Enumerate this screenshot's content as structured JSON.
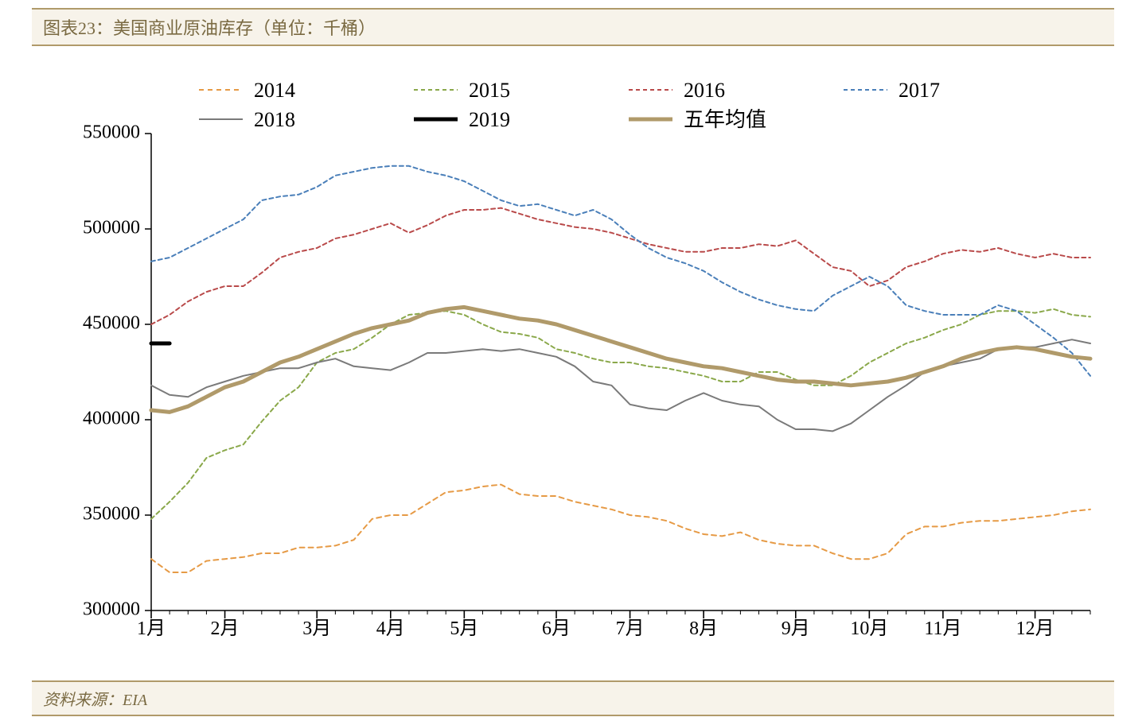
{
  "title": "图表23：美国商业原油库存（单位：千桶）",
  "source": "资料来源：EIA",
  "chart": {
    "type": "line",
    "background_color": "#ffffff",
    "axis_color": "#000000",
    "title_band_bg": "#f7f3ea",
    "title_band_border": "#b09a6a",
    "title_text_color": "#7a6a42",
    "xlabels": [
      "1月",
      "2月",
      "3月",
      "4月",
      "5月",
      "6月",
      "7月",
      "8月",
      "9月",
      "10月",
      "11月",
      "12月"
    ],
    "x_count": 52,
    "ylim": [
      300000,
      550000
    ],
    "ytick_step": 50000,
    "yticks": [
      300000,
      350000,
      400000,
      450000,
      500000,
      550000
    ],
    "tick_length_major": 8,
    "tick_length_minor": 5,
    "label_fontsize": 24,
    "legend": {
      "fontsize": 26,
      "items": [
        {
          "key": "s2014",
          "label": "2014"
        },
        {
          "key": "s2015",
          "label": "2015"
        },
        {
          "key": "s2016",
          "label": "2016"
        },
        {
          "key": "s2017",
          "label": "2017"
        },
        {
          "key": "s2018",
          "label": "2018"
        },
        {
          "key": "s2019",
          "label": "2019"
        },
        {
          "key": "s5yr",
          "label": "五年均值"
        }
      ]
    },
    "series": {
      "s2014": {
        "color": "#e69a45",
        "width": 2,
        "dash": "6,5",
        "values": [
          327000,
          320000,
          320000,
          326000,
          327000,
          328000,
          330000,
          330000,
          333000,
          333000,
          334000,
          337000,
          348000,
          350000,
          350000,
          356000,
          362000,
          363000,
          365000,
          366000,
          361000,
          360000,
          360000,
          357000,
          355000,
          353000,
          350000,
          349000,
          347000,
          343000,
          340000,
          339000,
          341000,
          337000,
          335000,
          334000,
          334000,
          330000,
          327000,
          327000,
          330000,
          340000,
          344000,
          344000,
          346000,
          347000,
          347000,
          348000,
          349000,
          350000,
          352000,
          353000
        ]
      },
      "s2015": {
        "color": "#8aa84a",
        "width": 2,
        "dash": "5,4",
        "values": [
          348000,
          357000,
          367000,
          380000,
          384000,
          387000,
          399000,
          410000,
          417000,
          430000,
          435000,
          437000,
          443000,
          450000,
          455000,
          456000,
          457000,
          455000,
          450000,
          446000,
          445000,
          443000,
          437000,
          435000,
          432000,
          430000,
          430000,
          428000,
          427000,
          425000,
          423000,
          420000,
          420000,
          425000,
          425000,
          421000,
          418000,
          418000,
          423000,
          430000,
          435000,
          440000,
          443000,
          447000,
          450000,
          455000,
          457000,
          457000,
          456000,
          458000,
          455000,
          454000
        ]
      },
      "s2016": {
        "color": "#b94a4a",
        "width": 2,
        "dash": "5,4",
        "values": [
          450000,
          455000,
          462000,
          467000,
          470000,
          470000,
          477000,
          485000,
          488000,
          490000,
          495000,
          497000,
          500000,
          503000,
          498000,
          502000,
          507000,
          510000,
          510000,
          511000,
          508000,
          505000,
          503000,
          501000,
          500000,
          498000,
          495000,
          492000,
          490000,
          488000,
          488000,
          490000,
          490000,
          492000,
          491000,
          494000,
          487000,
          480000,
          478000,
          470000,
          473000,
          480000,
          483000,
          487000,
          489000,
          488000,
          490000,
          487000,
          485000,
          487000,
          485000,
          485000
        ]
      },
      "s2017": {
        "color": "#4a7fb9",
        "width": 2,
        "dash": "5,4",
        "values": [
          483000,
          485000,
          490000,
          495000,
          500000,
          505000,
          515000,
          517000,
          518000,
          522000,
          528000,
          530000,
          532000,
          533000,
          533000,
          530000,
          528000,
          525000,
          520000,
          515000,
          512000,
          513000,
          510000,
          507000,
          510000,
          505000,
          497000,
          490000,
          485000,
          482000,
          478000,
          472000,
          467000,
          463000,
          460000,
          458000,
          457000,
          465000,
          470000,
          475000,
          470000,
          460000,
          457000,
          455000,
          455000,
          455000,
          460000,
          457000,
          450000,
          443000,
          435000,
          423000
        ]
      },
      "s2018": {
        "color": "#7a7a7a",
        "width": 2,
        "dash": "none",
        "values": [
          418000,
          413000,
          412000,
          417000,
          420000,
          423000,
          425000,
          427000,
          427000,
          430000,
          432000,
          428000,
          427000,
          426000,
          430000,
          435000,
          435000,
          436000,
          437000,
          436000,
          437000,
          435000,
          433000,
          428000,
          420000,
          418000,
          408000,
          406000,
          405000,
          410000,
          414000,
          410000,
          408000,
          407000,
          400000,
          395000,
          395000,
          394000,
          398000,
          405000,
          412000,
          418000,
          425000,
          428000,
          430000,
          432000,
          437000,
          438000,
          438000,
          440000,
          442000,
          440000
        ]
      },
      "s2019": {
        "color": "#000000",
        "width": 5,
        "dash": "none",
        "values": [
          440000,
          440000
        ]
      },
      "s5yr": {
        "color": "#b09a6a",
        "width": 5,
        "dash": "none",
        "values": [
          405000,
          404000,
          407000,
          412000,
          417000,
          420000,
          425000,
          430000,
          433000,
          437000,
          441000,
          445000,
          448000,
          450000,
          452000,
          456000,
          458000,
          459000,
          457000,
          455000,
          453000,
          452000,
          450000,
          447000,
          444000,
          441000,
          438000,
          435000,
          432000,
          430000,
          428000,
          427000,
          425000,
          423000,
          421000,
          420000,
          420000,
          419000,
          418000,
          419000,
          420000,
          422000,
          425000,
          428000,
          432000,
          435000,
          437000,
          438000,
          437000,
          435000,
          433000,
          432000
        ]
      }
    }
  }
}
